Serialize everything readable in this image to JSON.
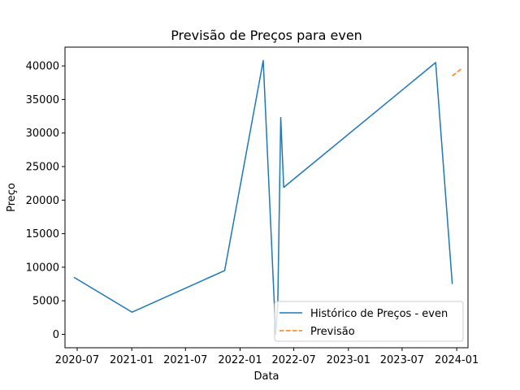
{
  "chart_data": {
    "type": "line",
    "title": "Previsão de Preços para even",
    "xlabel": "Data",
    "ylabel": "Preço",
    "x_axis_type": "date",
    "xlim": [
      "2020-05-21",
      "2024-02-08"
    ],
    "ylim": [
      -2000,
      42800
    ],
    "x_ticks": [
      {
        "date": "2020-07-01",
        "label": "2020-07"
      },
      {
        "date": "2021-01-01",
        "label": "2021-01"
      },
      {
        "date": "2021-07-01",
        "label": "2021-07"
      },
      {
        "date": "2022-01-01",
        "label": "2022-01"
      },
      {
        "date": "2022-07-01",
        "label": "2022-07"
      },
      {
        "date": "2023-01-01",
        "label": "2023-01"
      },
      {
        "date": "2023-07-01",
        "label": "2023-07"
      },
      {
        "date": "2024-01-01",
        "label": "2024-01"
      }
    ],
    "y_ticks": [
      0,
      5000,
      10000,
      15000,
      20000,
      25000,
      30000,
      35000,
      40000
    ],
    "grid": false,
    "legend_position": "lower right",
    "series": [
      {
        "name": "Histórico de Preços - even",
        "color": "#1f77b4",
        "style": "solid",
        "points": [
          {
            "x": "2020-06-20",
            "y": 8500
          },
          {
            "x": "2021-01-02",
            "y": 3300
          },
          {
            "x": "2021-11-10",
            "y": 9500
          },
          {
            "x": "2022-03-20",
            "y": 40800
          },
          {
            "x": "2022-05-01",
            "y": 0
          },
          {
            "x": "2022-05-08",
            "y": 4500
          },
          {
            "x": "2022-05-18",
            "y": 32300
          },
          {
            "x": "2022-05-28",
            "y": 21900
          },
          {
            "x": "2023-10-22",
            "y": 40500
          },
          {
            "x": "2023-12-17",
            "y": 7500
          }
        ]
      },
      {
        "name": "Previsão",
        "color": "#ff7f0e",
        "style": "dashed",
        "points": [
          {
            "x": "2023-12-17",
            "y": 38500
          },
          {
            "x": "2024-01-15",
            "y": 39500
          }
        ]
      }
    ]
  }
}
